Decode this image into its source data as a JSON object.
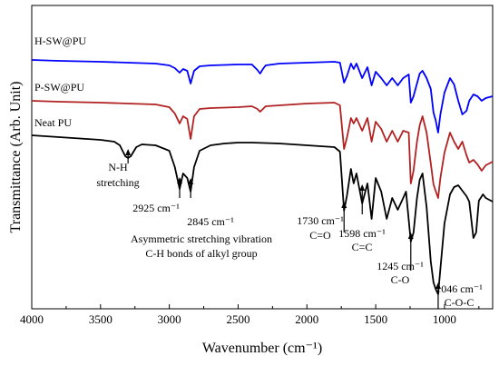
{
  "chart_data": {
    "type": "line",
    "xlabel": "Wavenumber (cm⁻¹)",
    "ylabel": "Transmittance (Arb. Unit)",
    "x_reversed": true,
    "xlim": [
      4000,
      650
    ],
    "xticks": [
      4000,
      3500,
      3000,
      2500,
      2000,
      1500,
      1000
    ],
    "grid": false,
    "series": [
      {
        "name": "H-SW@PU",
        "color": "#0000ff",
        "points": [
          [
            4000,
            60
          ],
          [
            3800,
            61
          ],
          [
            3500,
            62
          ],
          [
            3300,
            63
          ],
          [
            3100,
            64
          ],
          [
            3000,
            66
          ],
          [
            2960,
            69
          ],
          [
            2925,
            74
          ],
          [
            2900,
            70
          ],
          [
            2870,
            72
          ],
          [
            2845,
            86
          ],
          [
            2820,
            72
          ],
          [
            2780,
            67
          ],
          [
            2700,
            66
          ],
          [
            2500,
            65
          ],
          [
            2400,
            65
          ],
          [
            2360,
            71
          ],
          [
            2340,
            75
          ],
          [
            2320,
            70
          ],
          [
            2300,
            66
          ],
          [
            2200,
            64
          ],
          [
            2000,
            63
          ],
          [
            1800,
            62
          ],
          [
            1760,
            63
          ],
          [
            1730,
            85
          ],
          [
            1710,
            78
          ],
          [
            1680,
            64
          ],
          [
            1660,
            70
          ],
          [
            1640,
            64
          ],
          [
            1598,
            80
          ],
          [
            1560,
            68
          ],
          [
            1530,
            88
          ],
          [
            1500,
            73
          ],
          [
            1460,
            80
          ],
          [
            1420,
            88
          ],
          [
            1380,
            80
          ],
          [
            1340,
            88
          ],
          [
            1300,
            80
          ],
          [
            1260,
            76
          ],
          [
            1245,
            107
          ],
          [
            1225,
            100
          ],
          [
            1200,
            86
          ],
          [
            1180,
            75
          ],
          [
            1160,
            72
          ],
          [
            1130,
            80
          ],
          [
            1100,
            92
          ],
          [
            1080,
            118
          ],
          [
            1065,
            126
          ],
          [
            1046,
            140
          ],
          [
            1030,
            120
          ],
          [
            1000,
            96
          ],
          [
            960,
            80
          ],
          [
            930,
            87
          ],
          [
            900,
            105
          ],
          [
            870,
            120
          ],
          [
            840,
            116
          ],
          [
            820,
            105
          ],
          [
            790,
            98
          ],
          [
            760,
            100
          ],
          [
            730,
            105
          ],
          [
            700,
            102
          ],
          [
            650,
            100
          ]
        ]
      },
      {
        "name": "P-SW@PU",
        "color": "#b22222",
        "points": [
          [
            4000,
            105
          ],
          [
            3800,
            106
          ],
          [
            3500,
            107
          ],
          [
            3300,
            108
          ],
          [
            3100,
            109
          ],
          [
            3000,
            112
          ],
          [
            2960,
            119
          ],
          [
            2925,
            130
          ],
          [
            2900,
            122
          ],
          [
            2870,
            125
          ],
          [
            2845,
            147
          ],
          [
            2820,
            122
          ],
          [
            2780,
            114
          ],
          [
            2700,
            113
          ],
          [
            2500,
            112
          ],
          [
            2400,
            111
          ],
          [
            2360,
            114
          ],
          [
            2340,
            117
          ],
          [
            2320,
            114
          ],
          [
            2300,
            111
          ],
          [
            2200,
            110
          ],
          [
            2000,
            108
          ],
          [
            1800,
            107
          ],
          [
            1760,
            110
          ],
          [
            1730,
            158
          ],
          [
            1710,
            146
          ],
          [
            1680,
            124
          ],
          [
            1660,
            130
          ],
          [
            1640,
            124
          ],
          [
            1598,
            138
          ],
          [
            1560,
            124
          ],
          [
            1530,
            150
          ],
          [
            1500,
            128
          ],
          [
            1460,
            136
          ],
          [
            1420,
            150
          ],
          [
            1380,
            138
          ],
          [
            1340,
            150
          ],
          [
            1300,
            138
          ],
          [
            1260,
            140
          ],
          [
            1245,
            196
          ],
          [
            1225,
            182
          ],
          [
            1200,
            150
          ],
          [
            1180,
            132
          ],
          [
            1160,
            122
          ],
          [
            1130,
            140
          ],
          [
            1100,
            174
          ],
          [
            1080,
            197
          ],
          [
            1065,
            204
          ],
          [
            1046,
            212
          ],
          [
            1030,
            190
          ],
          [
            1000,
            162
          ],
          [
            960,
            140
          ],
          [
            930,
            150
          ],
          [
            900,
            158
          ],
          [
            870,
            150
          ],
          [
            840,
            165
          ],
          [
            820,
            173
          ],
          [
            790,
            170
          ],
          [
            760,
            175
          ],
          [
            730,
            182
          ],
          [
            700,
            176
          ],
          [
            650,
            172
          ]
        ]
      },
      {
        "name": "Neat PU",
        "color": "#000000",
        "points": [
          [
            4000,
            143
          ],
          [
            3800,
            145
          ],
          [
            3600,
            147
          ],
          [
            3500,
            148
          ],
          [
            3400,
            150
          ],
          [
            3360,
            154
          ],
          [
            3320,
            166
          ],
          [
            3300,
            168
          ],
          [
            3280,
            166
          ],
          [
            3240,
            156
          ],
          [
            3200,
            153
          ],
          [
            3100,
            154
          ],
          [
            3000,
            160
          ],
          [
            2960,
            178
          ],
          [
            2925,
            202
          ],
          [
            2900,
            185
          ],
          [
            2870,
            190
          ],
          [
            2845,
            205
          ],
          [
            2820,
            178
          ],
          [
            2780,
            160
          ],
          [
            2700,
            154
          ],
          [
            2600,
            152
          ],
          [
            2500,
            151
          ],
          [
            2400,
            151
          ],
          [
            2200,
            152
          ],
          [
            2000,
            154
          ],
          [
            1900,
            155
          ],
          [
            1800,
            156
          ],
          [
            1760,
            161
          ],
          [
            1730,
            226
          ],
          [
            1710,
            210
          ],
          [
            1680,
            180
          ],
          [
            1660,
            196
          ],
          [
            1640,
            185
          ],
          [
            1598,
            218
          ],
          [
            1560,
            196
          ],
          [
            1530,
            235
          ],
          [
            1500,
            190
          ],
          [
            1460,
            205
          ],
          [
            1420,
            235
          ],
          [
            1380,
            212
          ],
          [
            1340,
            225
          ],
          [
            1300,
            212
          ],
          [
            1280,
            205
          ],
          [
            1245,
            260
          ],
          [
            1225,
            250
          ],
          [
            1200,
            212
          ],
          [
            1180,
            192
          ],
          [
            1160,
            185
          ],
          [
            1130,
            222
          ],
          [
            1100,
            282
          ],
          [
            1080,
            305
          ],
          [
            1065,
            312
          ],
          [
            1046,
            318
          ],
          [
            1030,
            290
          ],
          [
            1000,
            240
          ],
          [
            960,
            208
          ],
          [
            930,
            200
          ],
          [
            900,
            198
          ],
          [
            870,
            204
          ],
          [
            840,
            210
          ],
          [
            820,
            216
          ],
          [
            790,
            256
          ],
          [
            770,
            250
          ],
          [
            750,
            215
          ],
          [
            720,
            208
          ],
          [
            700,
            212
          ],
          [
            650,
            216
          ]
        ]
      }
    ],
    "annotations": [
      {
        "id": "nh",
        "lines": [
          "N-H",
          "stretching"
        ],
        "arrow_x": 3300,
        "text_x": 3370
      },
      {
        "id": "p2925",
        "lines": [
          "2925 cm⁻¹"
        ],
        "arrow_x": 2925,
        "text_x": 3080
      },
      {
        "id": "p2845",
        "lines": [
          "2845 cm⁻¹"
        ],
        "arrow_x": 2845,
        "text_x": 2720
      },
      {
        "id": "ch",
        "lines": [
          "Asymmetric stretching vibration",
          "C-H bonds of alkyl group"
        ],
        "text_x": 2800
      },
      {
        "id": "p1730",
        "lines": [
          "1730 cm⁻¹",
          "C=O"
        ],
        "arrow_x": 1730,
        "text_x": 1860
      },
      {
        "id": "p1598",
        "lines": [
          "1598 cm⁻¹",
          "C=C"
        ],
        "arrow_x": 1598,
        "text_x": 1530
      },
      {
        "id": "p1245",
        "lines": [
          "1245 cm⁻¹",
          "C-O"
        ],
        "arrow_x": 1245,
        "text_x": 1270
      },
      {
        "id": "p1046",
        "lines": [
          "1046 cm⁻¹",
          "C-O-C"
        ],
        "arrow_x": 1046,
        "text_x": 880
      }
    ]
  }
}
